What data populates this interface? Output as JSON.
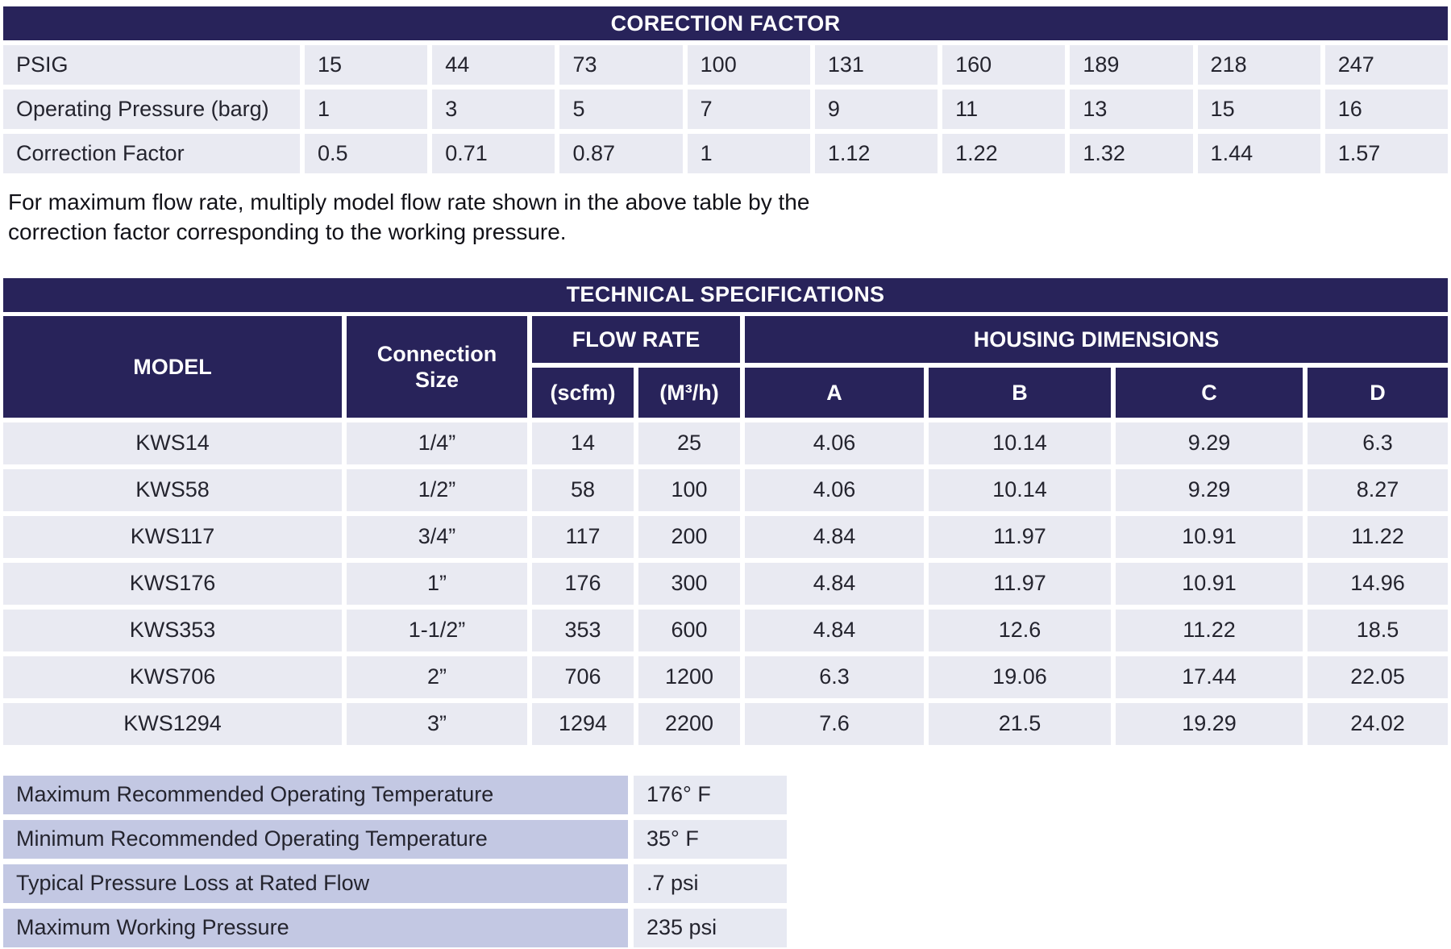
{
  "correction_table": {
    "title": "CORECTION FACTOR",
    "rows": [
      {
        "label": "PSIG",
        "values": [
          "15",
          "44",
          "73",
          "100",
          "131",
          "160",
          "189",
          "218",
          "247"
        ]
      },
      {
        "label": "Operating Pressure (barg)",
        "values": [
          "1",
          "3",
          "5",
          "7",
          "9",
          "11",
          "13",
          "15",
          "16"
        ]
      },
      {
        "label": "Correction Factor",
        "values": [
          "0.5",
          "0.71",
          "0.87",
          "1",
          "1.12",
          "1.22",
          "1.32",
          "1.44",
          "1.57"
        ]
      }
    ]
  },
  "note": {
    "line1": "For maximum flow rate, multiply model flow rate shown in the above table by the",
    "line2": "correction factor corresponding to the working pressure."
  },
  "spec_table": {
    "title": "TECHNICAL SPECIFICATIONS",
    "headers": {
      "model": "MODEL",
      "connection_size": "Connection Size",
      "flow_rate": "FLOW RATE",
      "housing_dimensions": "HOUSING DIMENSIONS",
      "scfm": "(scfm)",
      "m3h": "(M³/h)",
      "a": "A",
      "b": "B",
      "c": "C",
      "d": "D"
    },
    "rows": [
      {
        "model": "KWS14",
        "size": "1/4”",
        "scfm": "14",
        "m3h": "25",
        "a": "4.06",
        "b": "10.14",
        "c": "9.29",
        "d": "6.3"
      },
      {
        "model": "KWS58",
        "size": "1/2”",
        "scfm": "58",
        "m3h": "100",
        "a": "4.06",
        "b": "10.14",
        "c": "9.29",
        "d": "8.27"
      },
      {
        "model": "KWS117",
        "size": "3/4”",
        "scfm": "117",
        "m3h": "200",
        "a": "4.84",
        "b": "11.97",
        "c": "10.91",
        "d": "11.22"
      },
      {
        "model": "KWS176",
        "size": "1”",
        "scfm": "176",
        "m3h": "300",
        "a": "4.84",
        "b": "11.97",
        "c": "10.91",
        "d": "14.96"
      },
      {
        "model": "KWS353",
        "size": "1-1/2”",
        "scfm": "353",
        "m3h": "600",
        "a": "4.84",
        "b": "12.6",
        "c": "11.22",
        "d": "18.5"
      },
      {
        "model": "KWS706",
        "size": "2”",
        "scfm": "706",
        "m3h": "1200",
        "a": "6.3",
        "b": "19.06",
        "c": "17.44",
        "d": "22.05"
      },
      {
        "model": "KWS1294",
        "size": "3”",
        "scfm": "1294",
        "m3h": "2200",
        "a": "7.6",
        "b": "21.5",
        "c": "19.29",
        "d": "24.02"
      }
    ]
  },
  "props_table": {
    "rows": [
      {
        "label": "Maximum Recommended Operating Temperature",
        "value": "176° F"
      },
      {
        "label": "Minimum Recommended Operating Temperature",
        "value": "35° F"
      },
      {
        "label": "Typical Pressure Loss at Rated Flow",
        "value": ".7 psi"
      },
      {
        "label": "Maximum Working Pressure",
        "value": "235 psi"
      }
    ]
  },
  "colors": {
    "header_navy": "#28235a",
    "cell_lavender": "#e9eaf2",
    "props_label_lavender": "#c3c8e3",
    "props_value_lavender": "#e7e9f2",
    "gap_white": "#ffffff"
  }
}
